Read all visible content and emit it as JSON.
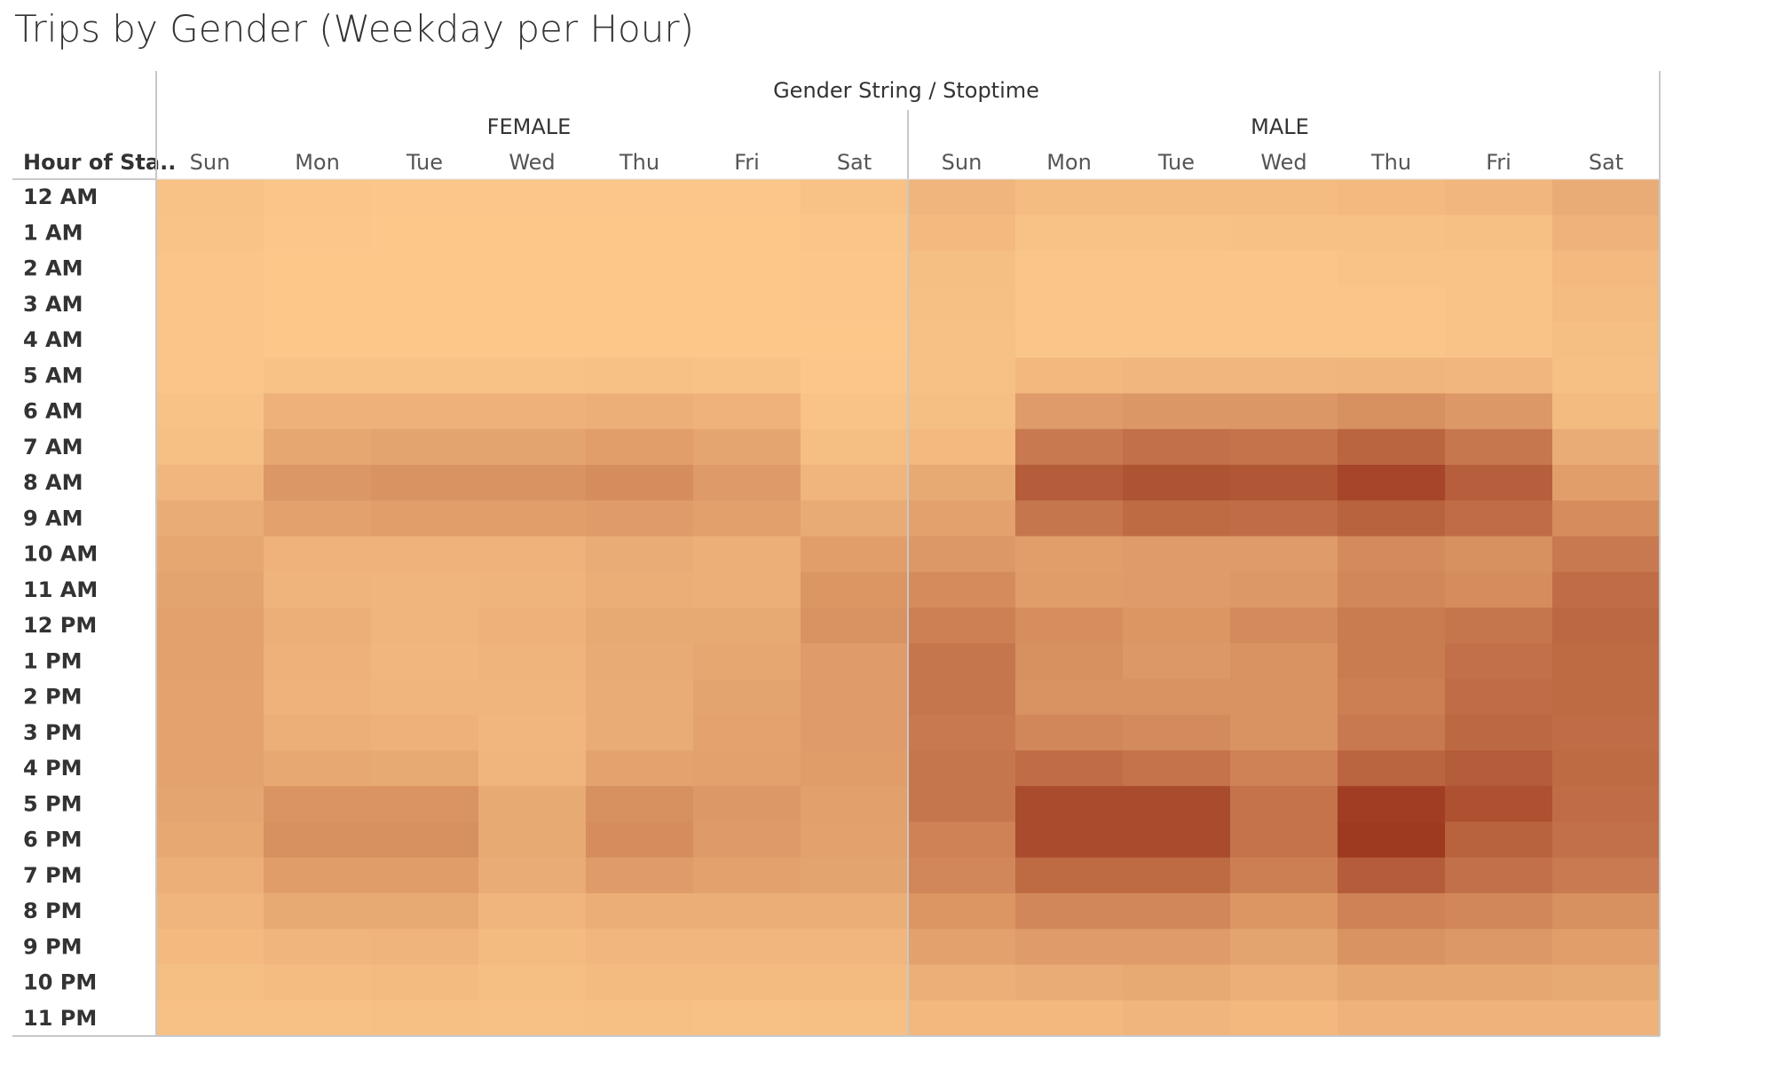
{
  "chart_title": "Trips by Gender (Weekday per Hour)",
  "chart_data": {
    "type": "heatmap",
    "title": "Trips by Gender (Weekday per Hour)",
    "column_header": "Gender String / Stoptime",
    "row_header": "Hour of Sta..",
    "groups": [
      "FEMALE",
      "MALE"
    ],
    "days": [
      "Sun",
      "Mon",
      "Tue",
      "Wed",
      "Thu",
      "Fri",
      "Sat"
    ],
    "hours": [
      "12 AM",
      "1 AM",
      "2 AM",
      "3 AM",
      "4 AM",
      "5 AM",
      "6 AM",
      "7 AM",
      "8 AM",
      "9 AM",
      "10 AM",
      "11 AM",
      "12 PM",
      "1 PM",
      "2 PM",
      "3 PM",
      "4 PM",
      "5 PM",
      "6 PM",
      "7 PM",
      "8 PM",
      "9 PM",
      "10 PM",
      "11 PM"
    ],
    "scale": "relative trip volume 0-100 (estimated from color intensity)",
    "color_range": [
      "#fdc98b",
      "#9e3a20"
    ],
    "values": {
      "FEMALE": [
        [
          5,
          3,
          2,
          2,
          2,
          2,
          5
        ],
        [
          4,
          2,
          1,
          1,
          1,
          1,
          3
        ],
        [
          3,
          1,
          1,
          1,
          1,
          1,
          2
        ],
        [
          3,
          1,
          1,
          1,
          1,
          1,
          2
        ],
        [
          3,
          1,
          1,
          1,
          1,
          1,
          1
        ],
        [
          3,
          5,
          5,
          5,
          6,
          5,
          2
        ],
        [
          5,
          17,
          17,
          17,
          18,
          16,
          4
        ],
        [
          7,
          24,
          26,
          26,
          30,
          25,
          8
        ],
        [
          13,
          35,
          38,
          38,
          42,
          33,
          14
        ],
        [
          20,
          28,
          30,
          30,
          32,
          29,
          21
        ],
        [
          24,
          16,
          16,
          16,
          20,
          18,
          30
        ],
        [
          26,
          15,
          14,
          15,
          19,
          18,
          36
        ],
        [
          28,
          18,
          14,
          17,
          22,
          22,
          38
        ],
        [
          28,
          17,
          13,
          15,
          21,
          24,
          32
        ],
        [
          27,
          16,
          14,
          14,
          20,
          26,
          32
        ],
        [
          27,
          18,
          17,
          13,
          20,
          27,
          32
        ],
        [
          27,
          23,
          22,
          14,
          27,
          28,
          31
        ],
        [
          25,
          37,
          37,
          22,
          40,
          34,
          29
        ],
        [
          23,
          40,
          40,
          22,
          42,
          33,
          28
        ],
        [
          18,
          31,
          31,
          20,
          32,
          28,
          26
        ],
        [
          14,
          22,
          22,
          14,
          19,
          19,
          19
        ],
        [
          11,
          14,
          15,
          10,
          13,
          13,
          13
        ],
        [
          8,
          9,
          10,
          8,
          10,
          10,
          10
        ],
        [
          6,
          6,
          7,
          6,
          7,
          6,
          7
        ]
      ],
      "MALE": [
        [
          14,
          9,
          9,
          9,
          11,
          13,
          20
        ],
        [
          11,
          5,
          5,
          6,
          6,
          7,
          16
        ],
        [
          8,
          3,
          3,
          3,
          4,
          4,
          11
        ],
        [
          7,
          3,
          3,
          3,
          3,
          4,
          9
        ],
        [
          6,
          3,
          3,
          3,
          3,
          4,
          8
        ],
        [
          6,
          12,
          13,
          13,
          14,
          13,
          7
        ],
        [
          8,
          32,
          35,
          35,
          40,
          34,
          10
        ],
        [
          11,
          56,
          62,
          60,
          70,
          57,
          20
        ],
        [
          22,
          76,
          82,
          80,
          92,
          74,
          30
        ],
        [
          28,
          58,
          66,
          64,
          72,
          64,
          42
        ],
        [
          34,
          30,
          32,
          32,
          44,
          40,
          56
        ],
        [
          43,
          31,
          32,
          34,
          46,
          42,
          64
        ],
        [
          51,
          41,
          36,
          44,
          54,
          58,
          68
        ],
        [
          58,
          40,
          34,
          38,
          54,
          62,
          66
        ],
        [
          58,
          38,
          38,
          38,
          52,
          64,
          66
        ],
        [
          56,
          46,
          44,
          38,
          56,
          68,
          64
        ],
        [
          58,
          64,
          60,
          50,
          70,
          76,
          66
        ],
        [
          58,
          88,
          88,
          60,
          98,
          84,
          64
        ],
        [
          50,
          88,
          88,
          60,
          100,
          72,
          62
        ],
        [
          46,
          66,
          66,
          52,
          76,
          62,
          55
        ],
        [
          36,
          46,
          46,
          36,
          50,
          46,
          40
        ],
        [
          28,
          32,
          32,
          26,
          38,
          34,
          30
        ],
        [
          18,
          20,
          22,
          18,
          24,
          24,
          22
        ],
        [
          12,
          12,
          14,
          12,
          16,
          16,
          16
        ]
      ]
    }
  }
}
